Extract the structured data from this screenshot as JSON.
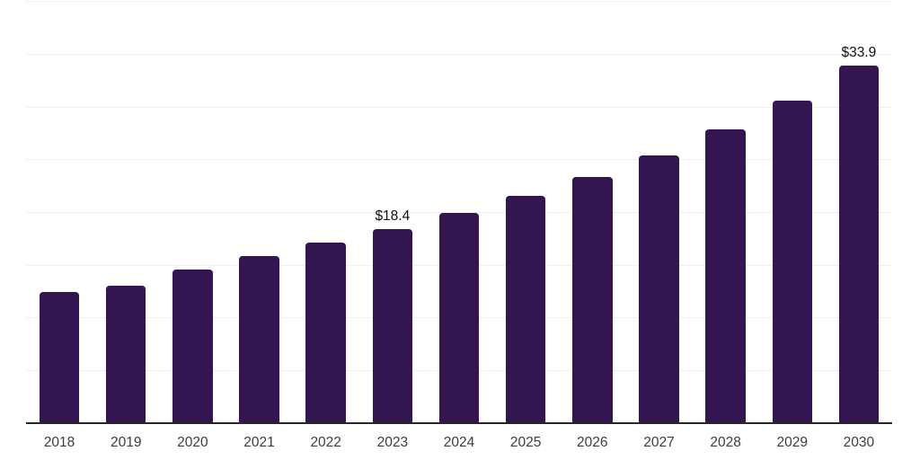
{
  "chart_data": {
    "type": "bar",
    "title": "",
    "xlabel": "",
    "ylabel": "",
    "categories": [
      "2018",
      "2019",
      "2020",
      "2021",
      "2022",
      "2023",
      "2024",
      "2025",
      "2026",
      "2027",
      "2028",
      "2029",
      "2030"
    ],
    "values": [
      12.4,
      13.0,
      14.5,
      15.8,
      17.1,
      18.4,
      19.9,
      21.5,
      23.3,
      25.4,
      27.8,
      30.6,
      33.9
    ],
    "value_labels": [
      "",
      "",
      "",
      "",
      "",
      "$18.4",
      "",
      "",
      "",
      "",
      "",
      "",
      "$33.9"
    ],
    "ylim": [
      0,
      40
    ],
    "gridline_step": 5,
    "grid": "horizontal-only",
    "legend": "none",
    "y_tick_labels_visible": false,
    "bar_color": "#321551",
    "grid_color": "#f0f0f0",
    "axis_color": "#26262c",
    "tick_label_color": "#3d3d3d",
    "value_label_color": "#101010",
    "background": "#ffffff"
  }
}
